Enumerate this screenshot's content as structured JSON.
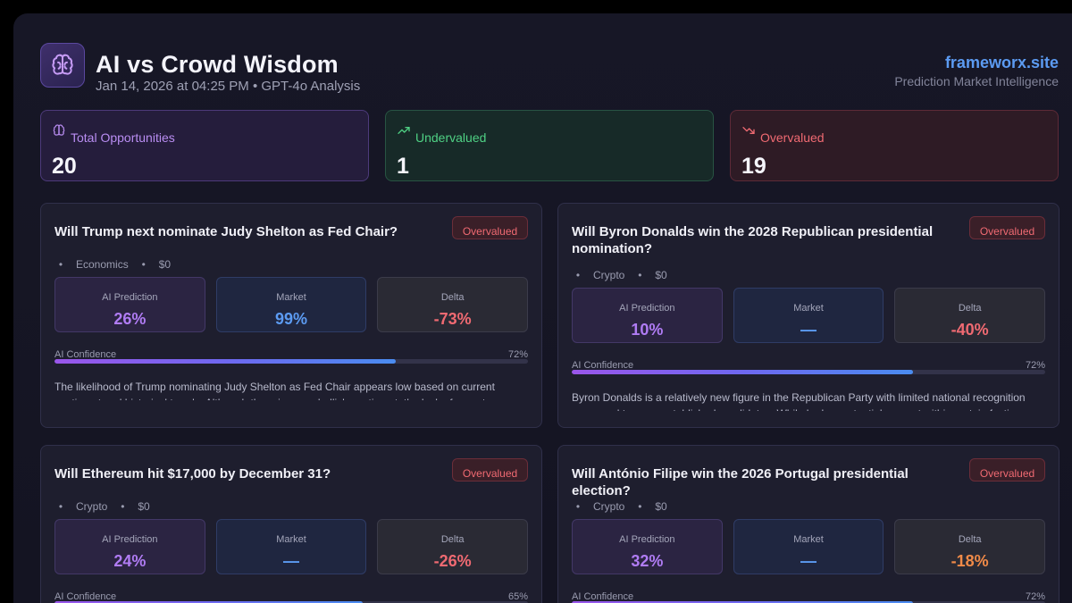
{
  "header": {
    "title": "AI vs Crowd Wisdom",
    "subtitle": "Jan 14, 2026 at 04:25 PM • GPT-4o Analysis",
    "brand": "frameworx.site",
    "brand_sub": "Prediction Market Intelligence",
    "logo_icon": "brain-icon"
  },
  "stats": {
    "total": {
      "label": "Total Opportunities",
      "value": "20",
      "icon": "brain-icon"
    },
    "undervalued": {
      "label": "Undervalued",
      "value": "1",
      "icon": "trend-up-icon"
    },
    "overvalued": {
      "label": "Overvalued",
      "value": "19",
      "icon": "trend-down-icon"
    }
  },
  "colors": {
    "accent_purple": "#b07cf4",
    "accent_blue": "#5c9bf2",
    "green": "#4fd184",
    "red": "#f06a72",
    "orange": "#f08a48"
  },
  "labels": {
    "ai_prediction": "AI Prediction",
    "market": "Market",
    "delta": "Delta",
    "ai_confidence": "AI Confidence"
  },
  "cards": [
    {
      "question": "Will Trump next nominate Judy Shelton as Fed Chair?",
      "badge": "Overvalued",
      "category": "Economics",
      "amount": "$0",
      "ai_prediction": "26%",
      "market": "99%",
      "delta": "-73%",
      "confidence": "72%",
      "confidence_value": 0.72,
      "description": "The likelihood of Trump nominating Judy Shelton as Fed Chair appears low based on current sentiment and historical trends. Although there is some bullish sentiment, the lack of recent"
    },
    {
      "question": "Will Byron Donalds win the 2028 Republican presidential nomination?",
      "badge": "Overvalued",
      "category": "Crypto",
      "amount": "$0",
      "ai_prediction": "10%",
      "market": "—",
      "delta": "-40%",
      "confidence": "72%",
      "confidence_value": 0.72,
      "description": "Byron Donalds is a relatively new figure in the Republican Party with limited national recognition compared to more established candidates. While he has potential support within certain factions"
    },
    {
      "question": "Will Ethereum hit $17,000 by December 31?",
      "badge": "Overvalued",
      "category": "Crypto",
      "amount": "$0",
      "ai_prediction": "24%",
      "market": "—",
      "delta": "-26%",
      "confidence": "65%",
      "confidence_value": 0.65,
      "description": ""
    },
    {
      "question": "Will António Filipe win the 2026 Portugal presidential election?",
      "badge": "Overvalued",
      "category": "Crypto",
      "amount": "$0",
      "ai_prediction": "32%",
      "market": "—",
      "delta": "-18%",
      "confidence": "72%",
      "confidence_value": 0.72,
      "description": ""
    }
  ]
}
